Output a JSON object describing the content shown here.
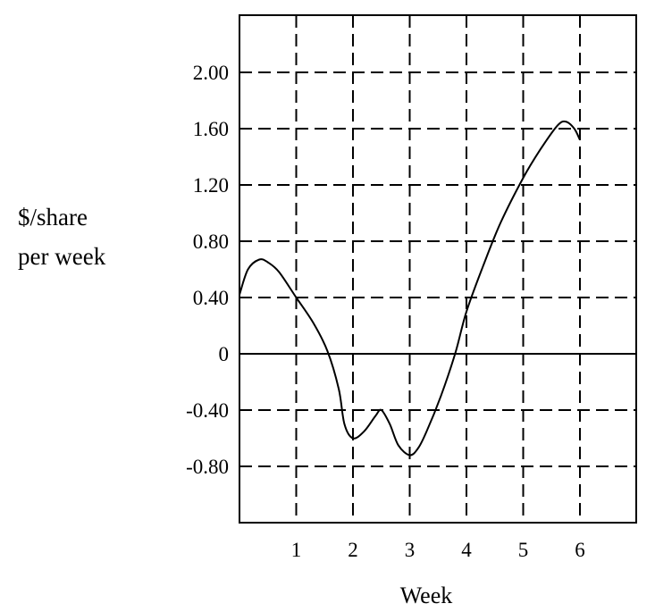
{
  "chart_data": {
    "type": "line",
    "title": "",
    "xlabel": "Week",
    "ylabel_lines": [
      "$/share",
      "per week"
    ],
    "xlim": [
      0,
      7
    ],
    "ylim": [
      -1.2,
      2.4
    ],
    "x_ticks": [
      1,
      2,
      3,
      4,
      5,
      6
    ],
    "x_tick_labels": [
      "1",
      "2",
      "3",
      "4",
      "5",
      "6"
    ],
    "y_ticks": [
      2.0,
      1.6,
      1.2,
      0.8,
      0.4,
      0,
      -0.4,
      -0.8
    ],
    "y_tick_labels": [
      "2.00",
      "1.60",
      "1.20",
      "0.80",
      "0.40",
      "0",
      "-0.40",
      "-0.80"
    ],
    "grid": "dashed",
    "zero_line": true,
    "series": [
      {
        "x": [
          0.0,
          0.15,
          0.35,
          0.5,
          0.7,
          1.0,
          1.3,
          1.55,
          1.75,
          1.85,
          2.0,
          2.2,
          2.4,
          2.5,
          2.65,
          2.8,
          3.0,
          3.15,
          3.3,
          3.55,
          3.8,
          4.0,
          4.3,
          4.6,
          5.0,
          5.3,
          5.6,
          5.75,
          5.9,
          6.0
        ],
        "y": [
          0.42,
          0.6,
          0.67,
          0.65,
          0.58,
          0.4,
          0.22,
          0.02,
          -0.25,
          -0.5,
          -0.6,
          -0.55,
          -0.44,
          -0.4,
          -0.5,
          -0.65,
          -0.72,
          -0.67,
          -0.55,
          -0.3,
          0.0,
          0.3,
          0.63,
          0.93,
          1.25,
          1.45,
          1.62,
          1.65,
          1.6,
          1.52
        ]
      }
    ]
  }
}
